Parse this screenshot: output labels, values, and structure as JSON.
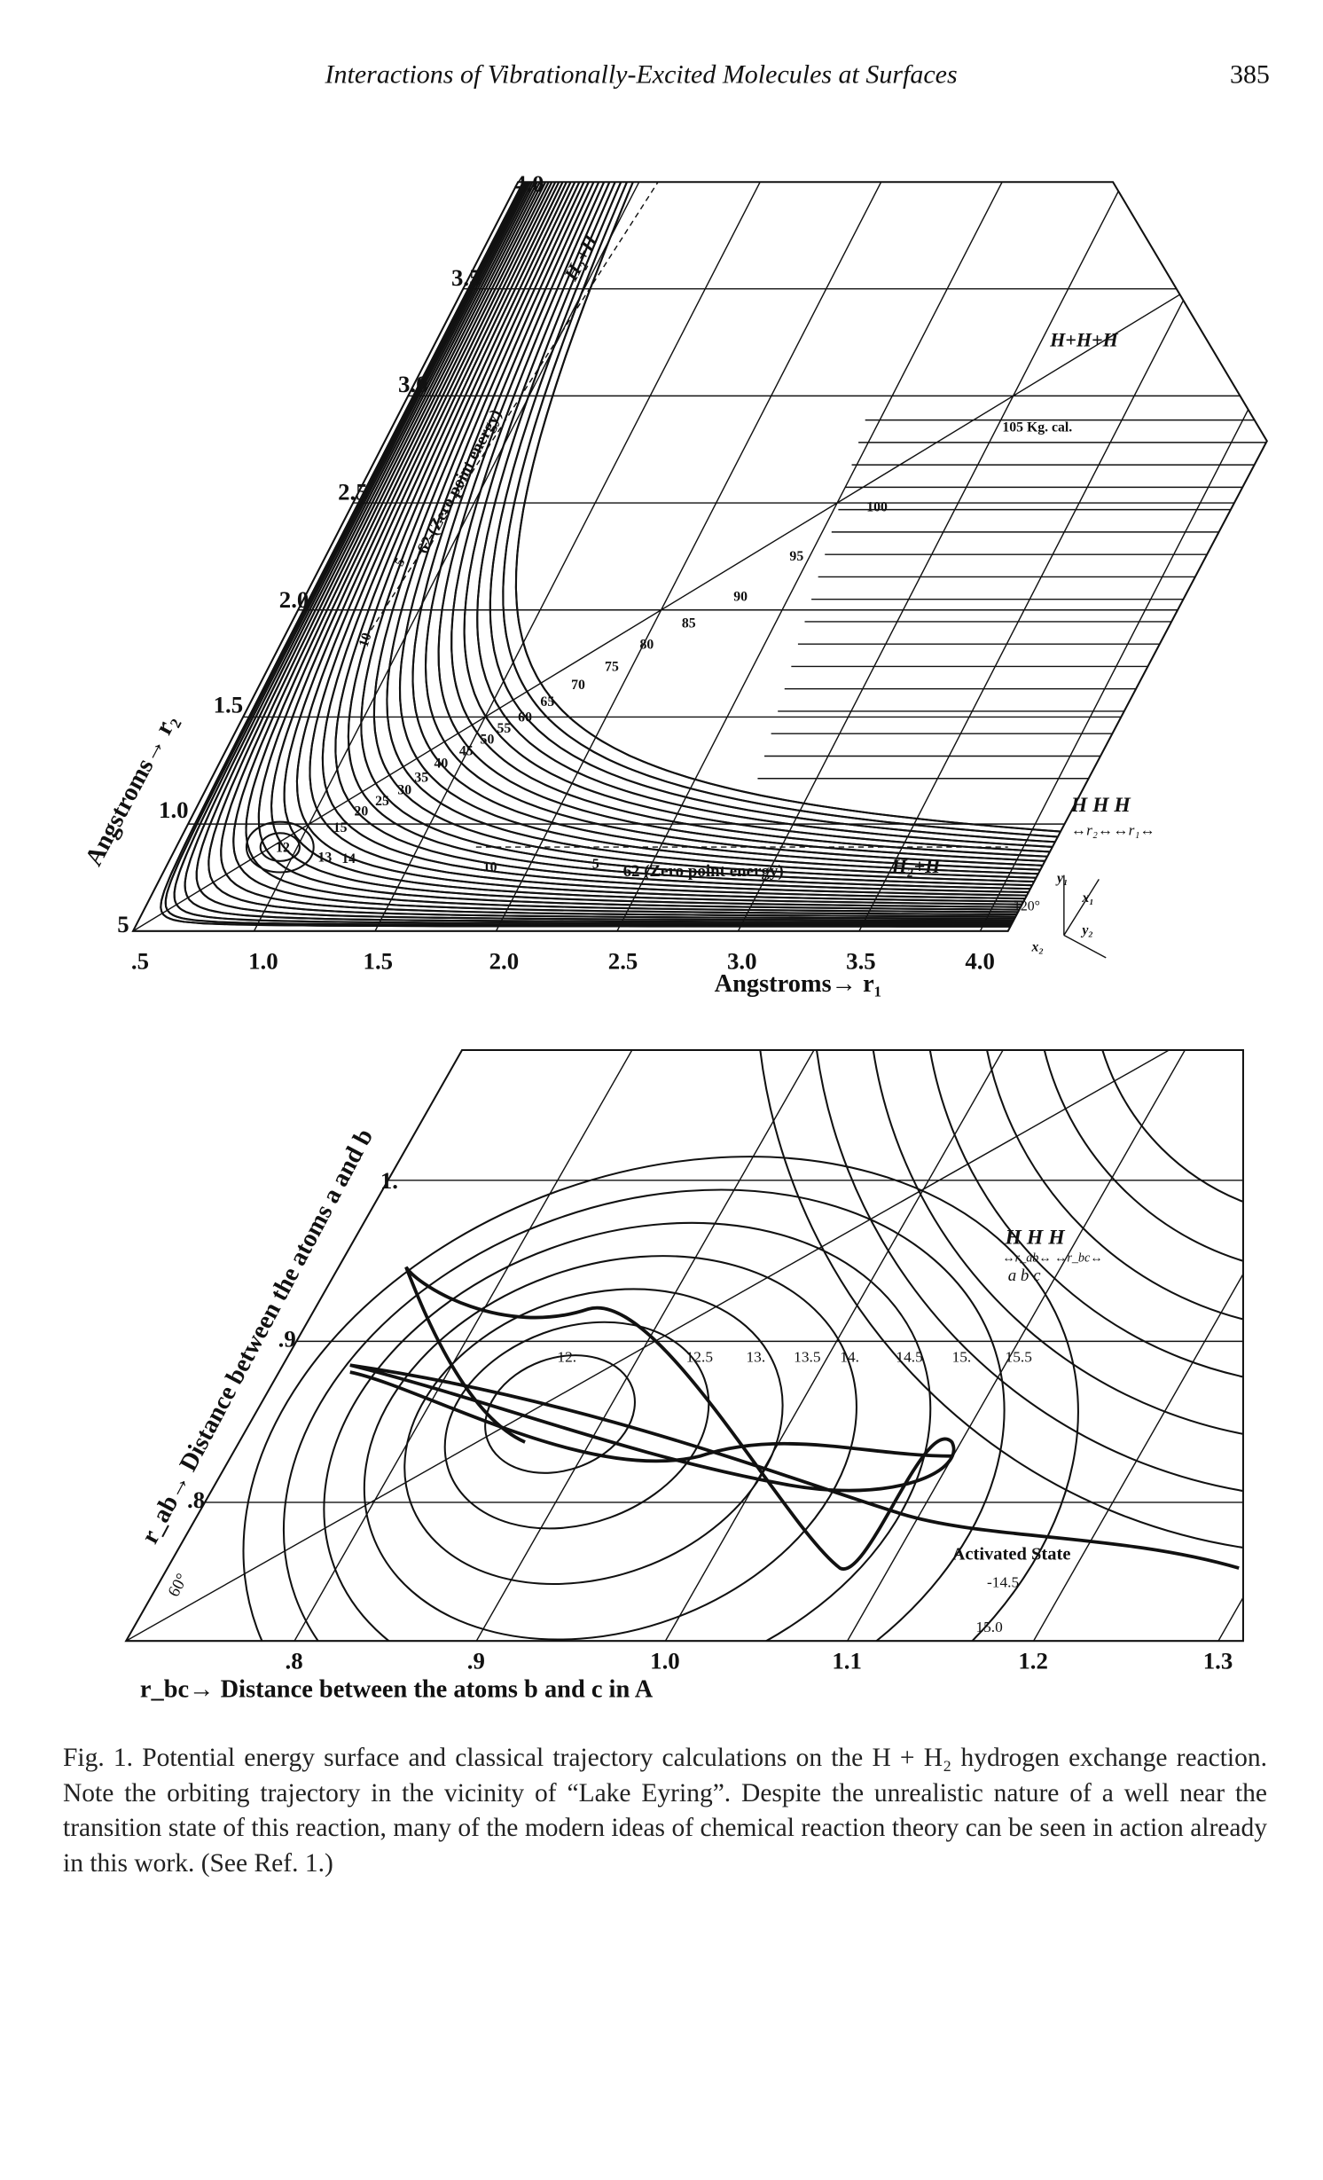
{
  "header": {
    "running_title": "Interactions of Vibrationally-Excited Molecules at Surfaces",
    "page_number": "385"
  },
  "figure_top": {
    "x_ticks": [
      ".5",
      "1.0",
      "1.5",
      "2.0",
      "2.5",
      "3.0",
      "3.5",
      "4.0"
    ],
    "x_title": "Angstroms→ r₁",
    "y_ticks": [
      "5",
      "1.0",
      "1.5",
      "2.0",
      "2.5",
      "3.0",
      "3.5",
      "4.0"
    ],
    "y_title": "Angstroms→ r₂",
    "contour_labels": [
      "105 Kg. cal.",
      "100",
      "95",
      "90",
      "85",
      "80",
      "75",
      "70",
      "65",
      "60",
      "55",
      "50",
      "45",
      "40",
      "35",
      "30",
      "25",
      "20",
      "15",
      "14",
      "13",
      "12",
      "10",
      "5",
      "62 (Zero point energy)",
      "10",
      "5",
      "62 (Zero point energy)"
    ],
    "region_labels": [
      "H+H+H",
      "H₂+H",
      "H₂+H"
    ],
    "legend": {
      "atoms": "H   H   H",
      "distances": "↔r₂↔↔r₁↔",
      "angle": "120°",
      "axes": [
        "y₁",
        "x₁",
        "y₂",
        "x₂"
      ]
    }
  },
  "figure_bottom": {
    "x_ticks": [
      ".8",
      ".9",
      "1.0",
      "1.1",
      "1.2",
      "1.3"
    ],
    "x_title": "r_bc→ Distance between the atoms b and c in A",
    "y_ticks": [
      ".8",
      ".9",
      "1."
    ],
    "y_title": "r_ab→ Distance between the atoms a and b",
    "angle": "60°",
    "contour_labels": [
      "12.",
      "12.5",
      "13.",
      "13.5",
      "14.",
      "14.5",
      "15.",
      "15.5",
      "Activated State",
      "-14.5",
      "15.0"
    ],
    "legend": {
      "atoms": "H    H    H",
      "letters": "a     b     c",
      "distances": "↔r_ab↔ ↔r_bc↔"
    }
  },
  "caption": "Fig. 1.  Potential energy surface and classical trajectory calculations on the H + H₂ hydrogen exchange reaction. Note the orbiting trajectory in the vicinity of “Lake Eyring”. Despite the unrealistic nature of a well near the transition state of this reaction, many of the modern ideas of chemical reaction theory can be seen in action already in this work. (See Ref. 1.)"
}
